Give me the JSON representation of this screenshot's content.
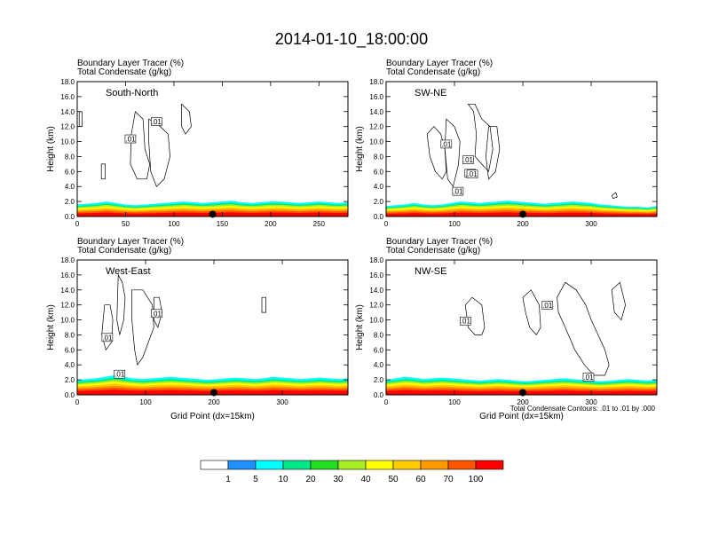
{
  "figure": {
    "title": "2014-01-10_18:00:00",
    "footnote": "Total Condensate Contours: .01 to .01 by .000"
  },
  "chart_data": [
    {
      "type": "area",
      "panel": "South-North",
      "title": "Boundary Layer Tracer   (%)",
      "subtitle": "Total Condensate   (g/kg)",
      "xlabel": "",
      "ylabel": "Height (km)",
      "xlim": [
        0,
        280
      ],
      "ylim": [
        0,
        18
      ],
      "xticks": [
        0,
        50,
        100,
        150,
        200,
        250
      ],
      "yticks": [
        0.0,
        2.0,
        4.0,
        6.0,
        8.0,
        10.0,
        12.0,
        14.0,
        16.0,
        18.0
      ],
      "contour_labels": [
        ".01",
        ".01"
      ],
      "boundary_layer_top_km": [
        1.6,
        1.7,
        1.8,
        2.0,
        1.8,
        1.6,
        1.5,
        1.6,
        1.7,
        1.8,
        1.9,
        2.0,
        1.9,
        1.8,
        1.9,
        2.0,
        2.1,
        1.9,
        1.8,
        1.9,
        2.0,
        2.0,
        1.9,
        1.8,
        1.9,
        2.0,
        1.9,
        1.8,
        1.9
      ],
      "marker_x": 140
    },
    {
      "type": "area",
      "panel": "SW-NE",
      "title": "Boundary Layer Tracer   (%)",
      "subtitle": "Total Condensate   (g/kg)",
      "xlabel": "",
      "ylabel": "Height (km)",
      "xlim": [
        0,
        396
      ],
      "ylim": [
        0,
        18
      ],
      "xticks": [
        0,
        100,
        200,
        300
      ],
      "yticks": [
        0.0,
        2.0,
        4.0,
        6.0,
        8.0,
        10.0,
        12.0,
        14.0,
        16.0,
        18.0
      ],
      "contour_labels": [
        ".01",
        ".01",
        ".01",
        ".01",
        ".01"
      ],
      "boundary_layer_top_km": [
        1.4,
        1.5,
        1.6,
        1.8,
        1.6,
        1.5,
        1.6,
        1.8,
        2.0,
        1.9,
        1.8,
        1.9,
        2.0,
        2.1,
        2.0,
        1.9,
        1.8,
        1.7,
        1.8,
        1.9,
        2.0,
        1.9,
        1.8,
        1.6,
        1.5,
        1.4,
        1.3,
        1.3,
        1.2,
        1.4
      ],
      "marker_x": 200
    },
    {
      "type": "area",
      "panel": "West-East",
      "title": "Boundary Layer Tracer   (%)",
      "subtitle": "Total Condensate   (g/kg)",
      "xlabel": "Grid Point (dx=15km)",
      "ylabel": "Height (km)",
      "xlim": [
        0,
        396
      ],
      "ylim": [
        0,
        18
      ],
      "xticks": [
        0,
        100,
        200,
        300
      ],
      "yticks": [
        0.0,
        2.0,
        4.0,
        6.0,
        8.0,
        10.0,
        12.0,
        14.0,
        16.0,
        18.0
      ],
      "contour_labels": [
        ".01",
        ".01",
        ".01"
      ],
      "boundary_layer_top_km": [
        2.0,
        2.1,
        2.2,
        2.4,
        2.6,
        2.4,
        2.2,
        2.1,
        2.2,
        2.3,
        2.4,
        2.3,
        2.2,
        2.1,
        2.0,
        2.1,
        2.2,
        2.3,
        2.2,
        2.1,
        2.2,
        2.4,
        2.3,
        2.2,
        2.1,
        2.2,
        2.3,
        2.2,
        2.1,
        2.2
      ],
      "marker_x": 200
    },
    {
      "type": "area",
      "panel": "NW-SE",
      "title": "Boundary Layer Tracer   (%)",
      "subtitle": "Total Condensate   (g/kg)",
      "xlabel": "Grid Point (dx=15km)",
      "ylabel": "Height (km)",
      "xlim": [
        0,
        396
      ],
      "ylim": [
        0,
        18
      ],
      "xticks": [
        0,
        100,
        200,
        300
      ],
      "yticks": [
        0.0,
        2.0,
        4.0,
        6.0,
        8.0,
        10.0,
        12.0,
        14.0,
        16.0,
        18.0
      ],
      "contour_labels": [
        ".01",
        ".01",
        ".01"
      ],
      "boundary_layer_top_km": [
        2.0,
        2.2,
        2.4,
        2.3,
        2.1,
        2.2,
        2.3,
        2.2,
        2.1,
        2.0,
        1.9,
        2.0,
        2.1,
        2.0,
        1.9,
        1.8,
        1.9,
        2.0,
        2.1,
        2.2,
        2.1,
        2.0,
        1.9,
        1.8,
        1.9,
        2.0,
        2.1,
        2.0,
        1.9,
        2.0
      ],
      "marker_x": 200
    }
  ],
  "colorbar": {
    "labels": [
      "1",
      "5",
      "10",
      "20",
      "30",
      "40",
      "50",
      "60",
      "70",
      "100"
    ],
    "colors": [
      "#ffffff",
      "#1e90ff",
      "#00ffff",
      "#00e88a",
      "#22dd22",
      "#a6ee22",
      "#ffff00",
      "#ffcc00",
      "#ff9900",
      "#ff5500",
      "#ff0000"
    ]
  }
}
